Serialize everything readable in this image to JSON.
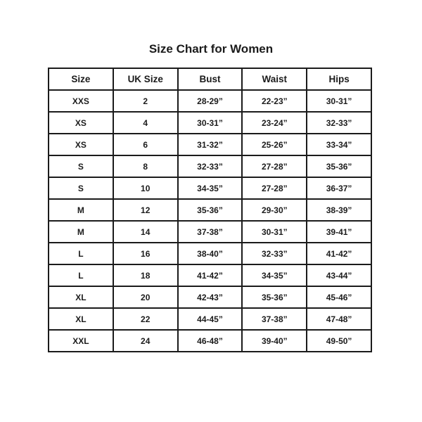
{
  "page": {
    "title": "Size Chart for Women"
  },
  "chart_data": {
    "type": "table",
    "title": "Size Chart for Women",
    "columns": [
      "Size",
      "UK Size",
      "Bust",
      "Waist",
      "Hips"
    ],
    "rows": [
      [
        "XXS",
        "2",
        "28-29”",
        "22-23”",
        "30-31”"
      ],
      [
        "XS",
        "4",
        "30-31”",
        "23-24”",
        "32-33”"
      ],
      [
        "XS",
        "6",
        "31-32”",
        "25-26”",
        "33-34”"
      ],
      [
        "S",
        "8",
        "32-33”",
        "27-28”",
        "35-36”"
      ],
      [
        "S",
        "10",
        "34-35”",
        "27-28”",
        "36-37”"
      ],
      [
        "M",
        "12",
        "35-36”",
        "29-30”",
        "38-39”"
      ],
      [
        "M",
        "14",
        "37-38”",
        "30-31”",
        "39-41”"
      ],
      [
        "L",
        "16",
        "38-40”",
        "32-33”",
        "41-42”"
      ],
      [
        "L",
        "18",
        "41-42”",
        "34-35”",
        "43-44”"
      ],
      [
        "XL",
        "20",
        "42-43”",
        "35-36”",
        "45-46”"
      ],
      [
        "XL",
        "22",
        "44-45”",
        "37-38”",
        "47-48”"
      ],
      [
        "XXL",
        "24",
        "46-48”",
        "39-40”",
        "49-50”"
      ]
    ]
  },
  "colors": {
    "text": "#1b1b1b",
    "border": "#1b1b1b",
    "background": "#ffffff"
  }
}
